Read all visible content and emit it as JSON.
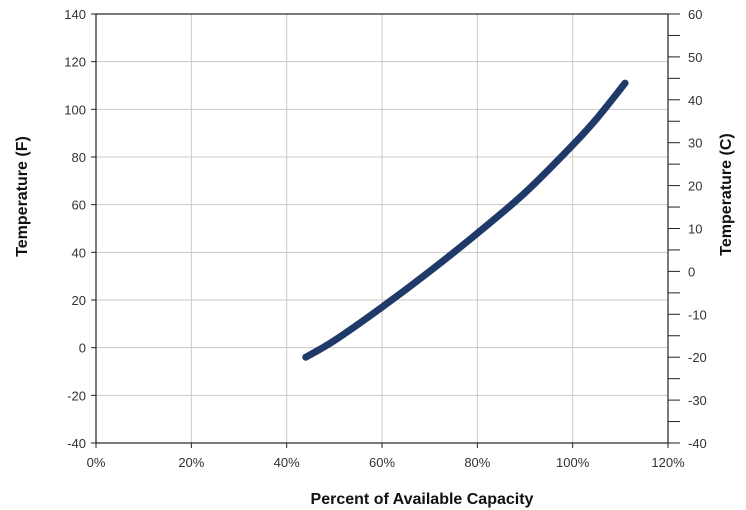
{
  "chart_data": {
    "type": "line",
    "xlabel": "Percent of Available Capacity",
    "ylabel": "Temperature (F)",
    "y2label": "Temperature (C)",
    "xlim": [
      0,
      120
    ],
    "ylim": [
      -40,
      140
    ],
    "y2lim": [
      -40,
      60
    ],
    "x_ticks": [
      0,
      20,
      40,
      60,
      80,
      100,
      120
    ],
    "x_tick_labels": [
      "0%",
      "20%",
      "40%",
      "60%",
      "80%",
      "100%",
      "120%"
    ],
    "y_ticks": [
      -40,
      -20,
      0,
      20,
      40,
      60,
      80,
      100,
      120,
      140
    ],
    "y_tick_labels": [
      "-40",
      "-20",
      "0",
      "20",
      "40",
      "60",
      "80",
      "100",
      "120",
      "140"
    ],
    "y2_ticks": [
      -40,
      -30,
      -20,
      -10,
      0,
      10,
      20,
      30,
      40,
      50,
      60
    ],
    "y2_tick_labels": [
      "-40",
      "-30",
      "-20",
      "-10",
      "0",
      "10",
      "20",
      "30",
      "40",
      "50",
      "60"
    ],
    "grid": true,
    "line_color": "#1f3a68",
    "series": [
      {
        "x": [
          44,
          50,
          60,
          70,
          80,
          90,
          100,
          105,
          111
        ],
        "y": [
          -4,
          3,
          17,
          32,
          48,
          65,
          85,
          96,
          111
        ]
      }
    ]
  }
}
